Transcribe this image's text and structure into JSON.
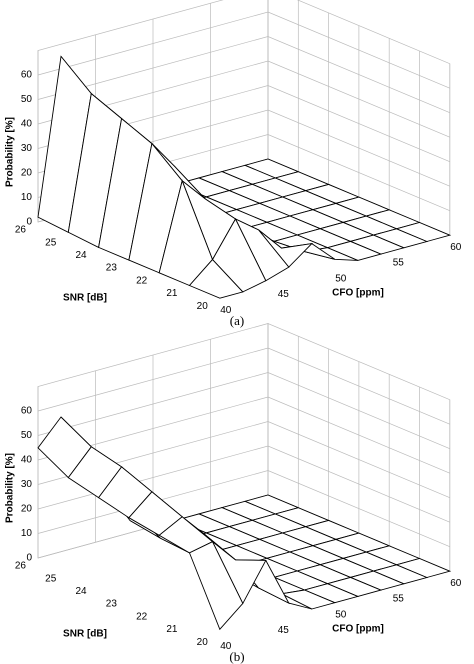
{
  "chart_data": [
    {
      "type": "surface",
      "caption": "(a)",
      "zlabel": "Probability [%]",
      "ylabel": "SNR [dB]",
      "xlabel": "CFO [ppm]",
      "snr": [
        20,
        21,
        22,
        23,
        24,
        25,
        26
      ],
      "cfo": [
        40,
        42,
        44,
        46,
        48,
        50,
        52,
        54,
        56,
        58,
        60
      ],
      "z": [
        [
          0,
          0,
          2,
          5,
          12,
          3,
          0,
          0,
          0,
          0,
          0
        ],
        [
          0,
          8,
          22,
          15,
          5,
          1,
          0,
          0,
          0,
          0,
          0
        ],
        [
          0,
          35,
          25,
          10,
          2,
          0,
          0,
          0,
          0,
          0,
          0
        ],
        [
          0,
          45,
          33,
          12,
          2,
          0,
          0,
          0,
          0,
          0,
          0
        ],
        [
          0,
          50,
          38,
          15,
          3,
          0,
          0,
          0,
          0,
          0,
          0
        ],
        [
          1,
          55,
          40,
          18,
          4,
          0,
          0,
          0,
          0,
          0,
          0
        ],
        [
          2,
          65,
          42,
          20,
          5,
          0,
          0,
          0,
          0,
          0,
          0
        ]
      ],
      "xlim": [
        40,
        60
      ],
      "xticks": [
        40,
        45,
        50,
        55,
        60
      ],
      "ylim": [
        20,
        26
      ],
      "yticks": [
        20,
        21,
        22,
        23,
        24,
        25,
        26
      ],
      "zlim": [
        0,
        70
      ],
      "zticks": [
        0,
        10,
        20,
        30,
        40,
        50,
        60
      ],
      "grid": true
    },
    {
      "type": "surface",
      "caption": "(b)",
      "zlabel": "Probability [%]",
      "ylabel": "SNR [dB]",
      "xlabel": "CFO [ppm]",
      "snr": [
        20,
        21,
        22,
        23,
        24,
        25,
        26
      ],
      "cfo": [
        40,
        42,
        44,
        46,
        48,
        50,
        52,
        54,
        56,
        58,
        60
      ],
      "z": [
        [
          2,
          10,
          25,
          5,
          0,
          0,
          0,
          0,
          0,
          0,
          0
        ],
        [
          28,
          30,
          20,
          6,
          1,
          0,
          0,
          0,
          0,
          0,
          0
        ],
        [
          30,
          35,
          25,
          8,
          1,
          0,
          0,
          0,
          0,
          0,
          0
        ],
        [
          32,
          40,
          28,
          10,
          1,
          0,
          0,
          0,
          0,
          0,
          0
        ],
        [
          35,
          45,
          30,
          12,
          2,
          0,
          0,
          0,
          0,
          0,
          0
        ],
        [
          38,
          48,
          35,
          15,
          3,
          0,
          0,
          0,
          0,
          0,
          0
        ],
        [
          45,
          55,
          40,
          20,
          5,
          0,
          0,
          0,
          0,
          0,
          0
        ]
      ],
      "xlim": [
        40,
        60
      ],
      "xticks": [
        40,
        45,
        50,
        55,
        60
      ],
      "ylim": [
        20,
        26
      ],
      "yticks": [
        20,
        21,
        22,
        23,
        24,
        25,
        26
      ],
      "zlim": [
        0,
        70
      ],
      "zticks": [
        0,
        10,
        20,
        30,
        40,
        50,
        60
      ],
      "grid": true
    }
  ]
}
